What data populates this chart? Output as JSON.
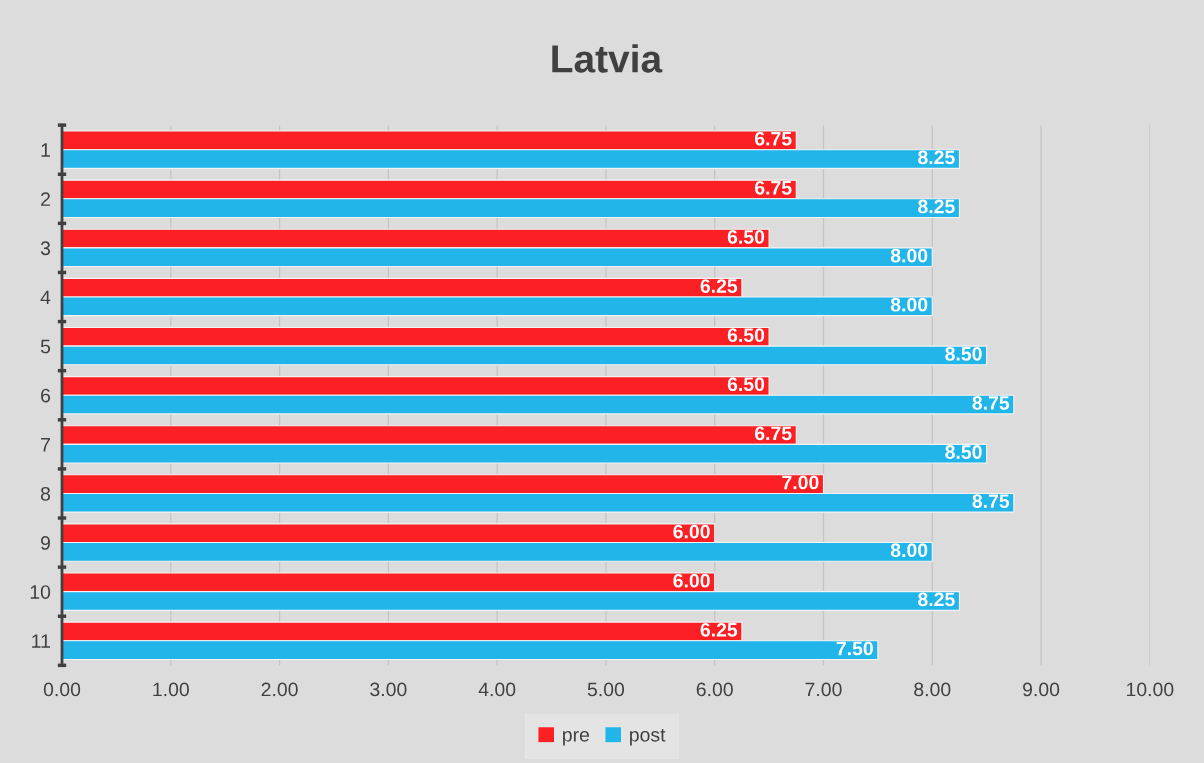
{
  "chart_data": {
    "type": "bar",
    "orientation": "horizontal",
    "title": "Latvia",
    "categories": [
      "1",
      "2",
      "3",
      "4",
      "5",
      "6",
      "7",
      "8",
      "9",
      "10",
      "11"
    ],
    "series": [
      {
        "name": "pre",
        "color": "#fc2024",
        "values": [
          6.75,
          6.75,
          6.5,
          6.25,
          6.5,
          6.5,
          6.75,
          7.0,
          6.0,
          6.0,
          6.25
        ],
        "value_labels": [
          "6.75",
          "6.75",
          "6.50",
          "6.25",
          "6.50",
          "6.50",
          "6.75",
          "7.00",
          "6.00",
          "6.00",
          "6.25"
        ]
      },
      {
        "name": "post",
        "color": "#21b5ea",
        "values": [
          8.25,
          8.25,
          8.0,
          8.0,
          8.5,
          8.75,
          8.5,
          8.75,
          8.0,
          8.25,
          7.5
        ],
        "value_labels": [
          "8.25",
          "8.25",
          "8.00",
          "8.00",
          "8.50",
          "8.75",
          "8.50",
          "8.75",
          "8.00",
          "8.25",
          "7.50"
        ]
      }
    ],
    "xlim": [
      0,
      10
    ],
    "xticks": [
      {
        "value": 0,
        "label": "0.00"
      },
      {
        "value": 1,
        "label": "1.00"
      },
      {
        "value": 2,
        "label": "2.00"
      },
      {
        "value": 3,
        "label": "3.00"
      },
      {
        "value": 4,
        "label": "4.00"
      },
      {
        "value": 5,
        "label": "5.00"
      },
      {
        "value": 6,
        "label": "6.00"
      },
      {
        "value": 7,
        "label": "7.00"
      },
      {
        "value": 8,
        "label": "8.00"
      },
      {
        "value": 9,
        "label": "9.00"
      },
      {
        "value": 10,
        "label": "10.00"
      }
    ],
    "grid": "x",
    "legend": "bottom"
  }
}
